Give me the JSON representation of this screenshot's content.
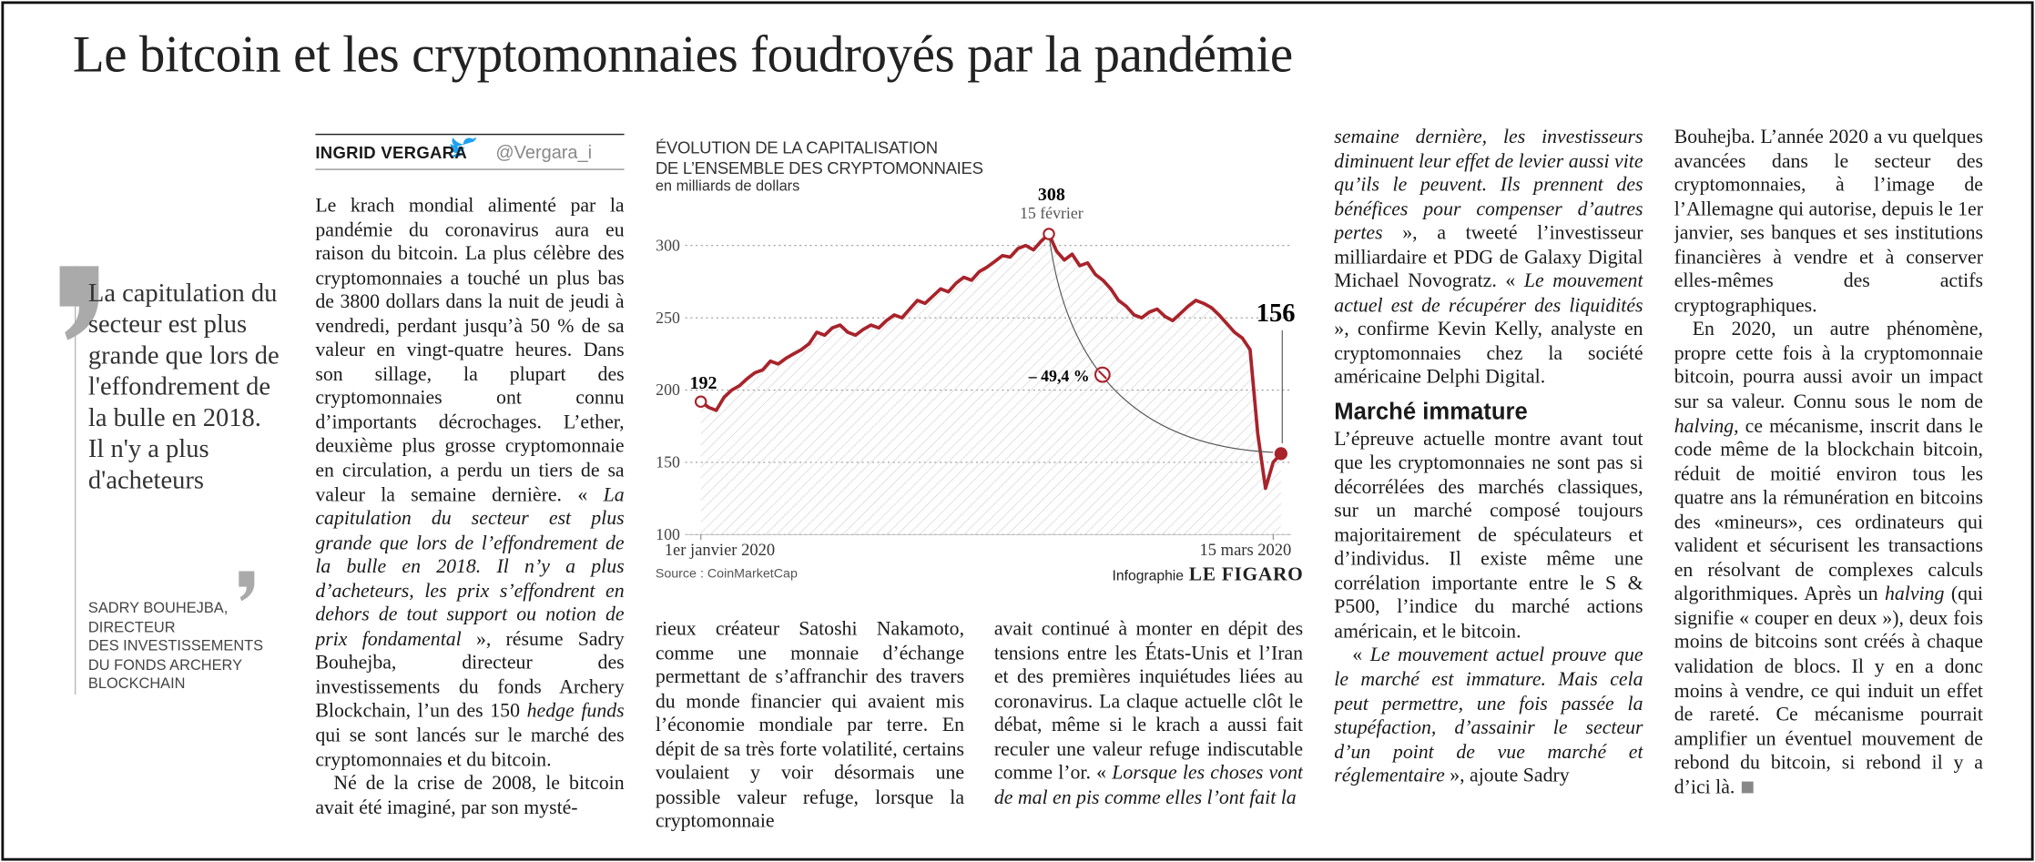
{
  "headline": "Le bitcoin et les cryptomonnaies foudroyés par la pandémie",
  "byline": {
    "author": "INGRID VERGARA",
    "handle": "@Vergara_i"
  },
  "quote": {
    "text": "La capitulation du secteur est plus grande que lors de l'effondrement de la bulle en 2018. Il n'y a plus d'acheteurs",
    "attribution": [
      "SADRY BOUHEJBA,",
      "DIRECTEUR",
      "DES INVESTISSEMENTS",
      "DU FONDS ARCHERY",
      "BLOCKCHAIN"
    ]
  },
  "chart_data": {
    "type": "line",
    "title": [
      "ÉVOLUTION DE LA CAPITALISATION",
      "DE L’ENSEMBLE DES CRYPTOMONNAIES"
    ],
    "subtitle": "en milliards de dollars",
    "source": "Source : CoinMarketCap",
    "credit": [
      "Infographie",
      "LE FIGARO"
    ],
    "categories": [
      "1er janvier 2020",
      null,
      null,
      null,
      null,
      null,
      null,
      null,
      null,
      null,
      null,
      null,
      null,
      null,
      null,
      null,
      null,
      null,
      null,
      null,
      null,
      null,
      null,
      null,
      null,
      null,
      null,
      null,
      null,
      null,
      null,
      null,
      null,
      null,
      null,
      null,
      null,
      null,
      null,
      null,
      null,
      null,
      null,
      null,
      null,
      null,
      null,
      null,
      null,
      null,
      null,
      null,
      null,
      null,
      null,
      null,
      null,
      null,
      null,
      null,
      null,
      null,
      null,
      null,
      null,
      null,
      null,
      null,
      null,
      null,
      null,
      null,
      null,
      null,
      "15 mars 2020",
      null
    ],
    "values": [
      192,
      188,
      186,
      195,
      200,
      203,
      208,
      212,
      214,
      220,
      218,
      222,
      225,
      228,
      232,
      240,
      238,
      243,
      245,
      240,
      238,
      242,
      245,
      243,
      248,
      252,
      250,
      256,
      262,
      260,
      265,
      270,
      268,
      274,
      278,
      276,
      282,
      285,
      289,
      293,
      292,
      298,
      300,
      297,
      303,
      308,
      296,
      290,
      294,
      286,
      288,
      280,
      276,
      270,
      262,
      258,
      252,
      250,
      254,
      256,
      251,
      248,
      253,
      258,
      262,
      260,
      257,
      252,
      246,
      240,
      236,
      228,
      170,
      132,
      150,
      156
    ],
    "color": "#a8232b",
    "annotations": {
      "start": "192",
      "peak": "308",
      "peak_date": "15 février",
      "end": "156",
      "change": "– 49,4 %"
    },
    "ylim": [
      100,
      310
    ],
    "yticks": [
      100,
      150,
      200,
      250,
      300
    ],
    "grid": true
  },
  "columns": [
    [
      [
        "Le krach mondial alimenté par la pandémie du coronavirus aura eu raison du bitcoin. La plus célèbre des cryptomonnaies a touché un plus bas de 3800 dollars dans la nuit de jeudi à vendredi, perdant jusqu’à 50 % de sa valeur en vingt-quatre heures. Dans son sillage, la plupart des cryptomonnaies ont connu d’importants décrochages. L’ether, deuxième plus grosse cryptomonnaie en circulation, a perdu un tiers de sa valeur la semaine dernière. « ",
        "La capitulation du secteur est plus grande que lors de l’effondrement de la bulle en 2018. Il n’y a plus d’acheteurs, les prix s’effondrent en dehors de tout support ou notion de prix fondamental",
        " », résume Sadry Bouhejba, directeur des investissements du fonds Archery Blockchain, l’un des 150 ",
        "hedge funds",
        " qui se sont lancés sur le marché des cryptomonnaies et du bitcoin."
      ],
      [
        "Né de la crise de 2008, le bitcoin avait été imaginé, par son mysté-"
      ]
    ],
    [
      [
        "rieux créateur Satoshi Nakamoto, comme une monnaie d’échange permettant de s’affranchir des travers du monde financier qui avaient mis l’économie mondiale par terre. En dépit de sa très forte volatilité, certains voulaient y voir désormais une possible valeur refuge, lorsque la cryptomonnaie"
      ]
    ],
    [
      [
        "avait continué à monter en dépit des tensions entre les États-Unis et l’Iran et des premières inquiétudes liées au coronavirus. La claque actuelle clôt le débat, même si le krach a aussi fait reculer une valeur refuge indiscutable comme l’or. « ",
        "Lorsque les choses vont de mal en pis comme elles l’ont fait la"
      ]
    ],
    [
      [
        "",
        "semaine dernière, les investisseurs diminuent leur effet de levier aussi vite qu’ils le peuvent. Ils prennent des bénéfices pour compenser d’autres pertes",
        " », a tweeté l’investisseur milliardaire et PDG de Galaxy Digital Michael Novogratz. « ",
        "Le mouvement actuel est de récupérer des liquidités",
        " », confirme Kevin Kelly, analyste en cryptomonnaies chez la société américaine Delphi Digital."
      ],
      "Marché immature",
      [
        "L’épreuve actuelle montre avant tout que les cryptomonnaies ne sont pas si décorrélées des marchés classiques, sur un marché composé toujours majoritairement de spéculateurs et d’individus. Il existe même une corrélation importante entre le S & P500, l’indice du marché actions américain, et le bitcoin."
      ],
      [
        "« ",
        "Le mouvement actuel prouve que le marché est immature. Mais cela peut permettre, une fois passée la stupéfaction, d’assainir le secteur d’un point de vue marché et réglementaire",
        " », ajoute Sadry"
      ]
    ],
    [
      [
        "Bouhejba. L’année 2020 a vu quelques avancées dans le secteur des cryptomonnaies, à l’image de l’Allemagne qui autorise, depuis le 1er janvier, ses banques et ses institutions financières à vendre et à conserver elles-mêmes des actifs cryptographiques."
      ],
      [
        "En 2020, un autre phénomène, propre cette fois à la cryptomonnaie bitcoin, pourra aussi avoir un impact sur sa valeur. Connu sous le nom de ",
        "halving",
        ", ce mécanisme, inscrit dans le code même de la blockchain bitcoin, réduit de moitié environ tous les quatre ans la rémunération en bitcoins des «mineurs», ces ordinateurs qui valident et sécurisent les transactions en résolvant de complexes calculs algorithmiques. Après un ",
        "halving",
        " (qui signifie « couper en deux »), deux fois moins de bitcoins sont créés à chaque validation de blocs. Il y en a donc moins à vendre, ce qui induit un effet de rareté. Ce mécanisme pourrait amplifier un éventuel mouvement de rebond du bitcoin, si rebond il y a d’ici là."
      ]
    ]
  ]
}
